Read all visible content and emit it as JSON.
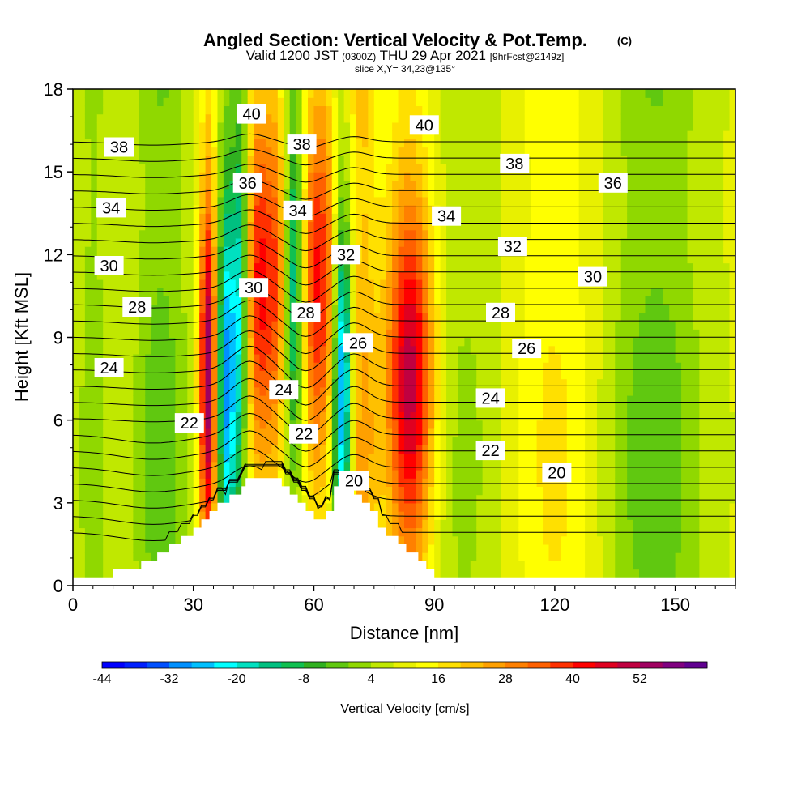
{
  "chart_data": {
    "type": "heatmap",
    "title": {
      "main": "Angled Section: Vertical Velocity & Pot.Temp.",
      "main_suffix": "(C)",
      "sub_1": "Valid 1200 JST",
      "sub_2": "(0300Z)",
      "sub_3": "THU 29 Apr 2021",
      "sub_4": "[9hrFcst@2149z]",
      "slice": "slice X,Y= 34,23@135°"
    },
    "xlabel": "Distance [nm]",
    "ylabel": "Height [Kft MSL]",
    "xlim": [
      0,
      165
    ],
    "ylim": [
      0,
      18
    ],
    "xticks": [
      0,
      30,
      60,
      90,
      120,
      150
    ],
    "yticks": [
      0,
      3,
      6,
      9,
      12,
      15,
      18
    ],
    "colorbar": {
      "label": "Vertical Velocity [cm/s]",
      "tick_labels": [
        "-44",
        "-32",
        "-20",
        "-8",
        "4",
        "16",
        "28",
        "40",
        "52"
      ],
      "colors": [
        "#0000ff",
        "#0020ff",
        "#0050ff",
        "#0090ff",
        "#00c0ff",
        "#00ffff",
        "#00e0c0",
        "#00c080",
        "#10c050",
        "#30b020",
        "#60c810",
        "#90d800",
        "#c0e800",
        "#e8f000",
        "#ffff00",
        "#ffe000",
        "#ffc000",
        "#ffa000",
        "#ff8000",
        "#ff6000",
        "#ff3000",
        "#ff0000",
        "#e00020",
        "#c00040",
        "#a00060",
        "#800080",
        "#600090"
      ]
    },
    "velocity_features": [
      {
        "x": 5,
        "w": 4,
        "v": -8
      },
      {
        "x": 22,
        "w": 7,
        "v": -12
      },
      {
        "x": 34,
        "w": 2.5,
        "v": 48
      },
      {
        "x": 38,
        "w": 3,
        "v": -38
      },
      {
        "x": 42,
        "w": 2,
        "v": -24
      },
      {
        "x": 46,
        "w": 3.5,
        "v": 28
      },
      {
        "x": 51,
        "w": 3,
        "v": 22
      },
      {
        "x": 55,
        "w": 3,
        "v": -34
      },
      {
        "x": 61,
        "w": 6,
        "v": 30
      },
      {
        "x": 67,
        "w": 2.5,
        "v": -44
      },
      {
        "x": 72,
        "w": 4,
        "v": 16
      },
      {
        "x": 84,
        "w": 6,
        "v": 38
      },
      {
        "x": 97,
        "w": 10,
        "v": -6
      },
      {
        "x": 120,
        "w": 10,
        "v": 8
      },
      {
        "x": 145,
        "w": 12,
        "v": -12
      }
    ],
    "theta_contours": [
      20,
      22,
      24,
      26,
      28,
      30,
      32,
      34,
      36,
      38,
      40
    ],
    "contour_labels": [
      {
        "text": "38",
        "x": 11.5,
        "y": 15.9
      },
      {
        "text": "40",
        "x": 44.5,
        "y": 17.1
      },
      {
        "text": "38",
        "x": 57,
        "y": 16.0
      },
      {
        "text": "40",
        "x": 87.5,
        "y": 16.7
      },
      {
        "text": "38",
        "x": 110,
        "y": 15.3
      },
      {
        "text": "36",
        "x": 134.5,
        "y": 14.6
      },
      {
        "text": "36",
        "x": 43.5,
        "y": 14.6
      },
      {
        "text": "34",
        "x": 9.5,
        "y": 13.7
      },
      {
        "text": "34",
        "x": 56,
        "y": 13.6
      },
      {
        "text": "34",
        "x": 93,
        "y": 13.4
      },
      {
        "text": "32",
        "x": 109.5,
        "y": 12.3
      },
      {
        "text": "32",
        "x": 68,
        "y": 12.0
      },
      {
        "text": "30",
        "x": 9,
        "y": 11.6
      },
      {
        "text": "30",
        "x": 129.5,
        "y": 11.2
      },
      {
        "text": "30",
        "x": 45,
        "y": 10.8
      },
      {
        "text": "28",
        "x": 16,
        "y": 10.1
      },
      {
        "text": "28",
        "x": 58,
        "y": 9.9
      },
      {
        "text": "28",
        "x": 106.5,
        "y": 9.9
      },
      {
        "text": "26",
        "x": 71,
        "y": 8.8
      },
      {
        "text": "26",
        "x": 113,
        "y": 8.6
      },
      {
        "text": "24",
        "x": 9,
        "y": 7.9
      },
      {
        "text": "24",
        "x": 52.5,
        "y": 7.1
      },
      {
        "text": "24",
        "x": 104,
        "y": 6.8
      },
      {
        "text": "22",
        "x": 29,
        "y": 5.9
      },
      {
        "text": "22",
        "x": 57.5,
        "y": 5.5
      },
      {
        "text": "22",
        "x": 104,
        "y": 4.9
      },
      {
        "text": "20",
        "x": 70,
        "y": 3.8
      },
      {
        "text": "20",
        "x": 120.5,
        "y": 4.1
      }
    ],
    "terrain": [
      [
        0,
        0.3
      ],
      [
        10,
        0.3
      ],
      [
        10,
        0.6
      ],
      [
        17,
        0.6
      ],
      [
        17,
        0.9
      ],
      [
        21,
        0.9
      ],
      [
        21,
        1.2
      ],
      [
        24,
        1.2
      ],
      [
        24,
        1.5
      ],
      [
        27,
        1.5
      ],
      [
        27,
        1.8
      ],
      [
        30,
        1.8
      ],
      [
        30,
        2.1
      ],
      [
        32,
        2.1
      ],
      [
        32,
        2.4
      ],
      [
        34,
        2.4
      ],
      [
        34,
        2.7
      ],
      [
        36,
        2.7
      ],
      [
        36,
        3.0
      ],
      [
        39,
        3.0
      ],
      [
        39,
        3.3
      ],
      [
        42,
        3.3
      ],
      [
        42,
        3.6
      ],
      [
        43,
        3.6
      ],
      [
        43,
        3.9
      ],
      [
        52,
        3.9
      ],
      [
        52,
        3.6
      ],
      [
        54,
        3.6
      ],
      [
        54,
        3.3
      ],
      [
        56,
        3.3
      ],
      [
        56,
        3.0
      ],
      [
        58,
        3.0
      ],
      [
        58,
        2.7
      ],
      [
        60,
        2.7
      ],
      [
        60,
        2.4
      ],
      [
        63,
        2.4
      ],
      [
        63,
        2.7
      ],
      [
        65,
        2.7
      ],
      [
        65,
        3.6
      ],
      [
        70,
        3.6
      ],
      [
        70,
        3.3
      ],
      [
        72,
        3.3
      ],
      [
        72,
        3.0
      ],
      [
        74,
        3.0
      ],
      [
        74,
        2.7
      ],
      [
        76,
        2.7
      ],
      [
        76,
        2.1
      ],
      [
        78,
        2.1
      ],
      [
        78,
        1.8
      ],
      [
        81,
        1.8
      ],
      [
        81,
        1.5
      ],
      [
        83,
        1.5
      ],
      [
        83,
        1.2
      ],
      [
        86,
        1.2
      ],
      [
        86,
        0.9
      ],
      [
        88,
        0.9
      ],
      [
        88,
        0.6
      ],
      [
        90,
        0.6
      ],
      [
        90,
        0.3
      ],
      [
        165,
        0.3
      ],
      [
        165,
        0
      ],
      [
        0,
        0
      ]
    ]
  }
}
